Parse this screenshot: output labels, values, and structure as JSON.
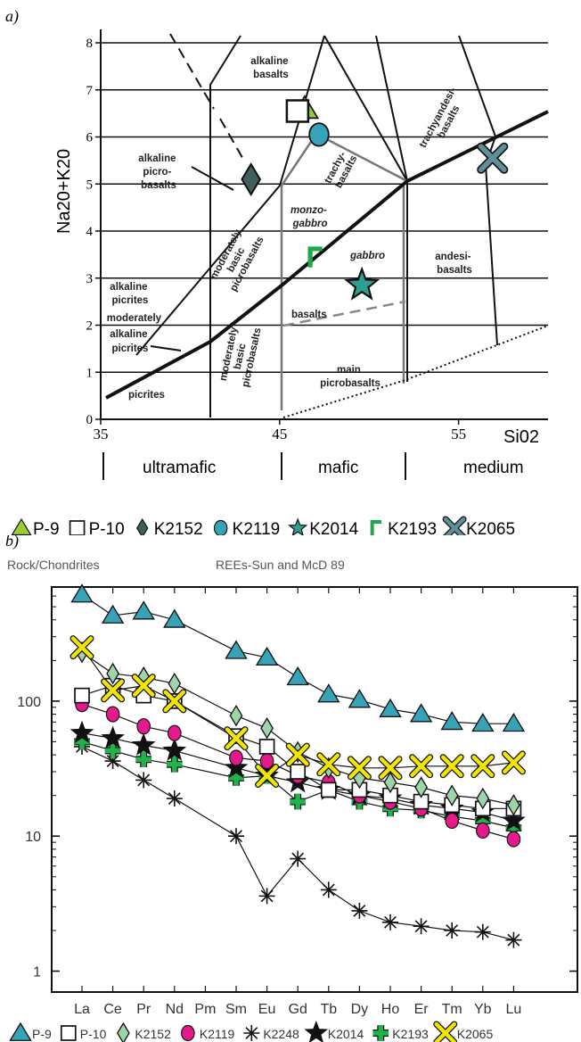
{
  "panel_a": {
    "label": "a)",
    "ylabel": "Na20+K20",
    "xlabel": "Si02",
    "x_ticks": [
      "35",
      "45",
      "55"
    ],
    "y_ticks": [
      "0",
      "1",
      "2",
      "3",
      "4",
      "5",
      "6",
      "7",
      "8"
    ],
    "composition_ranges": [
      "ultramafic",
      "mafic",
      "medium"
    ],
    "field_labels": {
      "alkaline_basalts": [
        "alkaline",
        "basalts"
      ],
      "alkaline_picrobasalts": [
        "alkaline",
        "picro-",
        "basalts"
      ],
      "trachybasalts": [
        "trachy-",
        "basalts"
      ],
      "trachyandesibasalts": [
        "trachyandesi-",
        "basalts"
      ],
      "monzogabbro": [
        "monzo-",
        "gabbro"
      ],
      "gabbro": "gabbro",
      "andesibasalts": [
        "andesi-",
        "basalts"
      ],
      "alkaline_picrites": [
        "alkaline",
        "picrites"
      ],
      "moderately_alkaline_picrites": [
        "moderately",
        "alkaline",
        "picrites"
      ],
      "moderately_basic_picrobasalts_upper": [
        "moderately",
        "basic",
        "picrobasalts"
      ],
      "basalts": "basalts",
      "moderately_basic_picrobasalts_lower": [
        "moderately",
        "basic",
        "picrobasalts"
      ],
      "main_picrobasalts": [
        "main",
        "picrobasalts"
      ],
      "picrites": "picrites"
    },
    "legend": [
      {
        "name": "P-9",
        "marker": "triangle",
        "color": "#9acd32"
      },
      {
        "name": "P-10",
        "marker": "square",
        "color": "#ffffff"
      },
      {
        "name": "K2152",
        "marker": "diamond",
        "color": "#3f5e5e"
      },
      {
        "name": "K2119",
        "marker": "circle",
        "color": "#36a3b8"
      },
      {
        "name": "K2014",
        "marker": "star",
        "color": "#2e9e8f"
      },
      {
        "name": "K2193",
        "marker": "gamma",
        "color": "#1ea84a"
      },
      {
        "name": "K2065",
        "marker": "x",
        "color": "#5f8f99"
      }
    ]
  },
  "panel_b": {
    "label": "b)",
    "title_left": "Rock/Chondrites",
    "title_right": "REEs-Sun and McD 89",
    "y_ticks": [
      "1",
      "10",
      "100"
    ],
    "legend": [
      {
        "name": "P-9",
        "marker": "triangle",
        "color": "#36a3b8"
      },
      {
        "name": "P-10",
        "marker": "square",
        "color": "#ffffff"
      },
      {
        "name": "K2152",
        "marker": "diamond",
        "color": "#9fd4a8"
      },
      {
        "name": "K2119",
        "marker": "circle",
        "color": "#e6198c"
      },
      {
        "name": "K2248",
        "marker": "asterisk",
        "color": "#111111"
      },
      {
        "name": "K2014",
        "marker": "star",
        "color": "#111111"
      },
      {
        "name": "K2193",
        "marker": "cross",
        "color": "#22b24c"
      },
      {
        "name": "K2065",
        "marker": "x",
        "color": "#f2e600"
      }
    ]
  },
  "chart_data": [
    {
      "type": "scatter",
      "title": "",
      "xlabel": "Si02",
      "ylabel": "Na20+K20",
      "xlim": [
        35,
        60
      ],
      "ylim": [
        0,
        8.2
      ],
      "grid": "horizontal",
      "series": [
        {
          "name": "P-9",
          "x": [
            46.4
          ],
          "y": [
            6.6
          ]
        },
        {
          "name": "P-10",
          "x": [
            46.0
          ],
          "y": [
            6.55
          ]
        },
        {
          "name": "K2152",
          "x": [
            43.4
          ],
          "y": [
            5.1
          ]
        },
        {
          "name": "K2119",
          "x": [
            47.2
          ],
          "y": [
            6.05
          ]
        },
        {
          "name": "K2014",
          "x": [
            49.6
          ],
          "y": [
            2.85
          ]
        },
        {
          "name": "K2193",
          "x": [
            47.0
          ],
          "y": [
            3.45
          ]
        },
        {
          "name": "K2065",
          "x": [
            56.9
          ],
          "y": [
            5.55
          ]
        }
      ]
    },
    {
      "type": "line",
      "title": "REEs-Sun and McD 89",
      "ylabel": "Rock/Chondrites",
      "yscale": "log",
      "ylim": [
        0.7,
        700
      ],
      "categories": [
        "La",
        "Ce",
        "Pr",
        "Nd",
        "Pm",
        "Sm",
        "Eu",
        "Gd",
        "Tb",
        "Dy",
        "Ho",
        "Er",
        "Tm",
        "Yb",
        "Lu"
      ],
      "series": [
        {
          "name": "P-9",
          "values": [
            615,
            430,
            460,
            400,
            null,
            235,
            210,
            150,
            112,
            102,
            87,
            80,
            70,
            68,
            68
          ]
        },
        {
          "name": "P-10",
          "values": [
            110,
            130,
            110,
            100,
            null,
            55,
            46,
            30,
            22,
            22,
            20,
            18,
            17,
            16,
            16
          ]
        },
        {
          "name": "K2152",
          "values": [
            230,
            160,
            150,
            135,
            null,
            78,
            63,
            42,
            32,
            27,
            25,
            23,
            20,
            19,
            17
          ]
        },
        {
          "name": "K2119",
          "values": [
            95,
            80,
            65,
            58,
            null,
            38,
            36,
            28,
            25,
            20,
            18,
            16,
            13,
            11,
            9.5
          ]
        },
        {
          "name": "K2248",
          "values": [
            46,
            36,
            26,
            19,
            null,
            10,
            3.6,
            6.8,
            4,
            2.8,
            2.3,
            2.15,
            2,
            1.95,
            1.7
          ]
        },
        {
          "name": "K2014",
          "values": [
            58,
            53,
            47,
            43,
            null,
            32,
            28,
            25,
            22,
            20,
            19,
            17,
            16,
            15,
            13
          ]
        },
        {
          "name": "K2193",
          "values": [
            50,
            43,
            37,
            34,
            null,
            27,
            28,
            18,
            22,
            18,
            16,
            15.5,
            14,
            13,
            11.5
          ]
        },
        {
          "name": "K2065",
          "values": [
            250,
            120,
            130,
            100,
            null,
            53,
            28,
            40,
            34,
            32,
            32,
            33,
            33,
            33,
            35
          ]
        }
      ]
    }
  ]
}
